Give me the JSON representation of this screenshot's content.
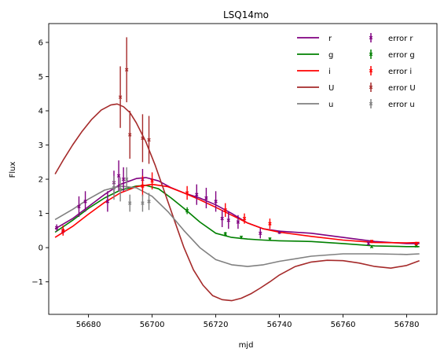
{
  "chart_data": {
    "type": "line",
    "title": "LSQ14mo",
    "xlabel": "mjd",
    "ylabel": "Flux",
    "xlim": [
      56667.5,
      56789.5
    ],
    "ylim": [
      -1.95,
      6.55
    ],
    "xticks": [
      56680,
      56700,
      56720,
      56740,
      56760,
      56780
    ],
    "yticks": [
      -1,
      0,
      1,
      2,
      3,
      4,
      5,
      6
    ],
    "grid": false,
    "legend_position": "top-right",
    "legend_entries": [
      "r",
      "g",
      "i",
      "U",
      "u",
      "error r",
      "error g",
      "error i",
      "error U",
      "error u"
    ],
    "series": [
      {
        "name": "r",
        "color": "#800080",
        "curve": {
          "x": [
            56669.5,
            56675,
            56680,
            56685,
            56690,
            56695,
            56698,
            56702,
            56706,
            56710,
            56715,
            56720,
            56725,
            56730,
            56735,
            56740,
            56750,
            56760,
            56770,
            56780,
            56784
          ],
          "y": [
            0.55,
            0.85,
            1.2,
            1.55,
            1.85,
            2.02,
            2.05,
            1.95,
            1.75,
            1.6,
            1.45,
            1.25,
            1.0,
            0.72,
            0.55,
            0.48,
            0.42,
            0.3,
            0.18,
            0.12,
            0.12
          ]
        },
        "errorbars": [
          {
            "x": 56670,
            "y": 0.58,
            "err": 0.1
          },
          {
            "x": 56672,
            "y": 0.48,
            "err": 0.1
          },
          {
            "x": 56677,
            "y": 1.2,
            "err": 0.3
          },
          {
            "x": 56679,
            "y": 1.35,
            "err": 0.3
          },
          {
            "x": 56686,
            "y": 1.35,
            "err": 0.3
          },
          {
            "x": 56688,
            "y": 1.9,
            "err": 0.35
          },
          {
            "x": 56689.5,
            "y": 2.1,
            "err": 0.45
          },
          {
            "x": 56691,
            "y": 2.0,
            "err": 0.35
          },
          {
            "x": 56697,
            "y": 2.0,
            "err": 0.3
          },
          {
            "x": 56714,
            "y": 1.55,
            "err": 0.3
          },
          {
            "x": 56717,
            "y": 1.45,
            "err": 0.3
          },
          {
            "x": 56720,
            "y": 1.35,
            "err": 0.3
          },
          {
            "x": 56722,
            "y": 0.85,
            "err": 0.25
          },
          {
            "x": 56724,
            "y": 0.8,
            "err": 0.25
          },
          {
            "x": 56727,
            "y": 0.75,
            "err": 0.2
          },
          {
            "x": 56734,
            "y": 0.42,
            "err": 0.15
          },
          {
            "x": 56740,
            "y": 0.45,
            "err": 0.05
          },
          {
            "x": 56768,
            "y": 0.12,
            "err": 0.05
          }
        ]
      },
      {
        "name": "g",
        "color": "#008000",
        "curve": {
          "x": [
            56669.5,
            56675,
            56680,
            56685,
            56690,
            56695,
            56698,
            56702,
            56706,
            56710,
            56715,
            56720,
            56725,
            56730,
            56735,
            56740,
            56750,
            56760,
            56770,
            56780,
            56784
          ],
          "y": [
            0.45,
            0.8,
            1.15,
            1.45,
            1.68,
            1.8,
            1.82,
            1.72,
            1.45,
            1.15,
            0.75,
            0.42,
            0.3,
            0.25,
            0.22,
            0.2,
            0.18,
            0.12,
            0.05,
            0.03,
            0.03
          ]
        },
        "errorbars": [
          {
            "x": 56711,
            "y": 1.08,
            "err": 0.1
          },
          {
            "x": 56723,
            "y": 0.4,
            "err": 0.06
          },
          {
            "x": 56728,
            "y": 0.3,
            "err": 0.05
          },
          {
            "x": 56737,
            "y": 0.25,
            "err": 0.05
          },
          {
            "x": 56769,
            "y": 0.03,
            "err": 0.04
          },
          {
            "x": 56783,
            "y": 0.05,
            "err": 0.04
          }
        ]
      },
      {
        "name": "i",
        "color": "#ff0000",
        "curve": {
          "x": [
            56669.5,
            56675,
            56680,
            56685,
            56690,
            56695,
            56700,
            56705,
            56710,
            56715,
            56720,
            56725,
            56730,
            56735,
            56740,
            56750,
            56760,
            56770,
            56780,
            56784
          ],
          "y": [
            0.3,
            0.62,
            0.98,
            1.32,
            1.6,
            1.78,
            1.85,
            1.78,
            1.6,
            1.4,
            1.18,
            0.95,
            0.72,
            0.55,
            0.45,
            0.33,
            0.22,
            0.15,
            0.14,
            0.15
          ]
        },
        "errorbars": [
          {
            "x": 56672,
            "y": 0.5,
            "err": 0.15
          },
          {
            "x": 56697,
            "y": 1.8,
            "err": 0.3
          },
          {
            "x": 56700,
            "y": 1.95,
            "err": 0.25
          },
          {
            "x": 56711,
            "y": 1.6,
            "err": 0.2
          },
          {
            "x": 56723,
            "y": 1.1,
            "err": 0.2
          },
          {
            "x": 56729,
            "y": 0.85,
            "err": 0.15
          },
          {
            "x": 56737,
            "y": 0.7,
            "err": 0.15
          },
          {
            "x": 56769,
            "y": 0.18,
            "err": 0.05
          },
          {
            "x": 56783,
            "y": 0.12,
            "err": 0.05
          }
        ]
      },
      {
        "name": "U",
        "color": "#a52a2a",
        "curve": {
          "x": [
            56669.5,
            56672,
            56675,
            56678,
            56681,
            56684,
            56687,
            56689,
            56691,
            56693,
            56695,
            56698,
            56701,
            56704,
            56707,
            56710,
            56713,
            56716,
            56719,
            56722,
            56725,
            56728,
            56731,
            56734,
            56737,
            56740,
            56745,
            56750,
            56755,
            56760,
            56765,
            56770,
            56775,
            56780,
            56784
          ],
          "y": [
            2.15,
            2.55,
            3.0,
            3.4,
            3.75,
            4.02,
            4.17,
            4.2,
            4.12,
            3.95,
            3.65,
            3.1,
            2.4,
            1.6,
            0.8,
            0.0,
            -0.65,
            -1.1,
            -1.4,
            -1.52,
            -1.55,
            -1.48,
            -1.35,
            -1.18,
            -1.0,
            -0.8,
            -0.55,
            -0.42,
            -0.37,
            -0.38,
            -0.45,
            -0.55,
            -0.6,
            -0.52,
            -0.38
          ]
        },
        "errorbars": [
          {
            "x": 56690,
            "y": 4.4,
            "err": 0.9
          },
          {
            "x": 56692,
            "y": 5.2,
            "err": 0.95
          },
          {
            "x": 56693,
            "y": 3.3,
            "err": 0.7
          },
          {
            "x": 56697,
            "y": 3.2,
            "err": 0.7
          },
          {
            "x": 56699,
            "y": 3.15,
            "err": 0.7
          }
        ]
      },
      {
        "name": "u",
        "color": "#808080",
        "curve": {
          "x": [
            56669.5,
            56675,
            56680,
            56685,
            56690,
            56695,
            56700,
            56705,
            56710,
            56715,
            56720,
            56725,
            56730,
            56735,
            56740,
            56750,
            56760,
            56770,
            56780,
            56784
          ],
          "y": [
            0.82,
            1.12,
            1.42,
            1.68,
            1.8,
            1.75,
            1.5,
            1.05,
            0.5,
            0.0,
            -0.35,
            -0.5,
            -0.55,
            -0.5,
            -0.4,
            -0.25,
            -0.18,
            -0.18,
            -0.2,
            -0.18
          ]
        },
        "errorbars": [
          {
            "x": 56688,
            "y": 1.75,
            "err": 0.35
          },
          {
            "x": 56690,
            "y": 1.7,
            "err": 0.35
          },
          {
            "x": 56692,
            "y": 2.0,
            "err": 0.35
          },
          {
            "x": 56693,
            "y": 1.3,
            "err": 0.25
          },
          {
            "x": 56697,
            "y": 1.3,
            "err": 0.25
          },
          {
            "x": 56699,
            "y": 1.35,
            "err": 0.25
          }
        ]
      }
    ]
  }
}
